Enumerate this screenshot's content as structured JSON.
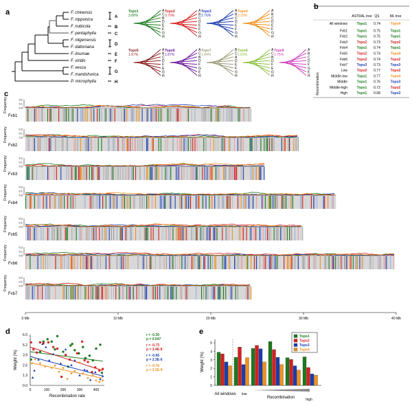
{
  "colors": {
    "Topo1": "#1d7a1d",
    "Topo2": "#d42020",
    "Topo3": "#1c3cb0",
    "Topo4": "#f0901a",
    "Topo5": "#8b1a1a",
    "Topo6": "#6a1a9a",
    "Topo7": "#9a9a78",
    "Topo8": "#8ac040",
    "Topo9": "#d040c0"
  },
  "panel_a": {
    "label": "a",
    "species": [
      "F. chinensis",
      "F. nipponica",
      "F. nubicola",
      "F. pentaphylla",
      "F. nilgerrensis",
      "F. daltoniana",
      "F. iinumae",
      "F. viridis",
      "F. vesca",
      "F. mandshurica",
      "P. microphylla"
    ],
    "groups": [
      "A",
      "B",
      "C",
      "D",
      "E",
      "F",
      "G",
      "H"
    ],
    "topologies": [
      {
        "name": "Topo1",
        "pct": "3.88%",
        "leaves": "ACBDEFGH"
      },
      {
        "name": "Topo2",
        "pct": "3.70%",
        "leaves": "ABCDEFGH"
      },
      {
        "name": "Topo3",
        "pct": "2.76%",
        "leaves": "ABCDEFGH"
      },
      {
        "name": "Topo4",
        "pct": "2.29%",
        "leaves": "ABCDEFGH"
      },
      {
        "name": "Topo5",
        "pct": "1.97%",
        "leaves": "ABCDFEGH"
      },
      {
        "name": "Topo6",
        "pct": "1.87%",
        "leaves": "ACBDFGEH"
      },
      {
        "name": "Topo7",
        "pct": "1.84%",
        "leaves": "BCADEFGH"
      },
      {
        "name": "Topo8",
        "pct": "1.83%",
        "leaves": "ACBDFEGH"
      },
      {
        "name": "Topo9",
        "pct": "1.75%",
        "leaves": "ABCDFGEH"
      }
    ]
  },
  "panel_b": {
    "label": "b",
    "headers": [
      "ASTRAL tree",
      "QS",
      "ML tree"
    ],
    "group_label": "Recombination",
    "rows": [
      {
        "name": "All windows",
        "astral": "Topo1",
        "qs": "0.74",
        "ml": "Topo4"
      },
      {
        "name": "Fvb1",
        "astral": "Topo1",
        "qs": "0.75",
        "ml": "Topo1"
      },
      {
        "name": "Fvb2",
        "astral": "Topo1",
        "qs": "0.75",
        "ml": "Topo1"
      },
      {
        "name": "Fvb3",
        "astral": "Topo2",
        "qs": "0.73",
        "ml": "Topo2"
      },
      {
        "name": "Fvb4",
        "astral": "Topo1",
        "qs": "0.74",
        "ml": "Topo1"
      },
      {
        "name": "Fvb5",
        "astral": "Topo2",
        "qs": "0.74",
        "ml": "Topo4"
      },
      {
        "name": "Fvb6",
        "astral": "Topo2",
        "qs": "0.74",
        "ml": "Topo2"
      },
      {
        "name": "Fvb7",
        "astral": "Topo3",
        "qs": "0.73",
        "ml": "Topo3"
      },
      {
        "name": "Low",
        "astral": "Topo2",
        "qs": "0.77",
        "ml": "Topo2"
      },
      {
        "name": "Middle-low",
        "astral": "Topo1",
        "qs": "0.77",
        "ml": "Topo4"
      },
      {
        "name": "Middle",
        "astral": "Topo1",
        "qs": "0.76",
        "ml": "Topo3"
      },
      {
        "name": "Middle-high",
        "astral": "Topo1",
        "qs": "0.72",
        "ml": "Topo2"
      },
      {
        "name": "High",
        "astral": "Topo1",
        "qs": "0.68",
        "ml": "Topo3"
      }
    ]
  },
  "panel_c": {
    "label": "c",
    "ylabel": "Frequency",
    "yticks": [
      "0.2",
      "0.1",
      "0.0"
    ],
    "chromosomes": [
      {
        "name": "Fvb1",
        "length_mb": 24.3
      },
      {
        "name": "Fvb2",
        "length_mb": 29.5
      },
      {
        "name": "Fvb3",
        "length_mb": 25.8
      },
      {
        "name": "Fvb4",
        "length_mb": 33.5
      },
      {
        "name": "Fvb5",
        "length_mb": 29.9
      },
      {
        "name": "Fvb6",
        "length_mb": 39.8
      },
      {
        "name": "Fvb7",
        "length_mb": 24.3
      }
    ],
    "xticks": [
      "0 Mb",
      "10 Mb",
      "20 Mb",
      "30 Mb",
      "40 Mb"
    ]
  },
  "chart_data": [
    {
      "panel": "d",
      "type": "scatter",
      "xlabel": "Recombination rate",
      "ylabel": "Weight (%)",
      "xlim": [
        0,
        450
      ],
      "ylim": [
        0,
        6.5
      ],
      "xticks": [
        "0",
        "100",
        "200",
        "300",
        "400"
      ],
      "yticks": [
        "0.0",
        "1.3",
        "2.6",
        "3.9",
        "5.2",
        "6.5"
      ],
      "series": [
        {
          "name": "Topo1",
          "marker": "circle",
          "r": "r = -0.30",
          "p": "p = 0.047",
          "fit": [
            4.3,
            3.1
          ],
          "points": [
            [
              5,
              3.3
            ],
            [
              60,
              4.3
            ],
            [
              80,
              5.6
            ],
            [
              105,
              5.9
            ],
            [
              130,
              5.6
            ],
            [
              165,
              6.3
            ],
            [
              150,
              4.6
            ],
            [
              200,
              4.3
            ],
            [
              245,
              5.1
            ],
            [
              255,
              5.3
            ],
            [
              270,
              4.5
            ],
            [
              295,
              4.1
            ],
            [
              320,
              4.9
            ],
            [
              335,
              3.5
            ],
            [
              360,
              3.8
            ],
            [
              380,
              3.2
            ],
            [
              400,
              4.7
            ],
            [
              425,
              5.2
            ],
            [
              435,
              1.6
            ],
            [
              230,
              2.4
            ]
          ]
        },
        {
          "name": "Topo2",
          "marker": "square",
          "r": "r = -0.73",
          "p": "p = 3.4E-8",
          "fit": [
            4.9,
            1.9
          ],
          "points": [
            [
              5,
              5.5
            ],
            [
              20,
              4.6
            ],
            [
              40,
              4.2
            ],
            [
              60,
              5.5
            ],
            [
              80,
              5.4
            ],
            [
              110,
              5.5
            ],
            [
              140,
              4.9
            ],
            [
              165,
              4.7
            ],
            [
              190,
              1.1
            ],
            [
              215,
              3.9
            ],
            [
              240,
              3.3
            ],
            [
              285,
              4.1
            ],
            [
              315,
              5.6
            ],
            [
              330,
              3.2
            ],
            [
              350,
              3.0
            ],
            [
              375,
              1.7
            ],
            [
              395,
              2.3
            ],
            [
              420,
              1.9
            ],
            [
              440,
              2.1
            ]
          ]
        },
        {
          "name": "Topo3",
          "marker": "triangle",
          "r": "r = -0.65",
          "p": "p = 2.3E-6",
          "fit": [
            3.7,
            1.2
          ],
          "points": [
            [
              15,
              1.0
            ],
            [
              25,
              1.9
            ],
            [
              50,
              3.3
            ],
            [
              75,
              5.3
            ],
            [
              95,
              4.9
            ],
            [
              115,
              3.2
            ],
            [
              140,
              4.0
            ],
            [
              185,
              2.8
            ],
            [
              215,
              4.6
            ],
            [
              250,
              2.6
            ],
            [
              270,
              3.2
            ],
            [
              300,
              1.3
            ],
            [
              330,
              2.0
            ],
            [
              345,
              1.9
            ],
            [
              365,
              0.7
            ],
            [
              395,
              1.7
            ],
            [
              425,
              0.8
            ],
            [
              440,
              1.2
            ]
          ]
        },
        {
          "name": "Topo4",
          "marker": "triangle-down",
          "r": "r = -0.76",
          "p": "p = 3.3E-9",
          "fit": [
            2.9,
            0.9
          ],
          "points": [
            [
              10,
              2.8
            ],
            [
              30,
              3.3
            ],
            [
              60,
              2.8
            ],
            [
              90,
              2.4
            ],
            [
              130,
              2.2
            ],
            [
              150,
              2.5
            ],
            [
              175,
              1.7
            ],
            [
              200,
              2.2
            ],
            [
              225,
              0.8
            ],
            [
              250,
              1.5
            ],
            [
              270,
              1.8
            ],
            [
              300,
              2.9
            ],
            [
              320,
              1.5
            ],
            [
              350,
              0.9
            ],
            [
              380,
              1.3
            ],
            [
              400,
              0.6
            ],
            [
              420,
              0.4
            ],
            [
              440,
              0.6
            ]
          ]
        }
      ]
    },
    {
      "panel": "e",
      "type": "bar",
      "ylabel": "Weight (%)",
      "ylim": [
        0,
        5.5
      ],
      "yticks": [
        "0",
        "1",
        "2",
        "3",
        "4",
        "5"
      ],
      "categories": [
        "All windows",
        "low",
        "",
        "",
        "",
        "high"
      ],
      "xlabel": "Recombination",
      "series": [
        {
          "name": "Topo1",
          "values": [
            3.9,
            3.3,
            4.35,
            5.15,
            3.25,
            3.35
          ]
        },
        {
          "name": "Topo2",
          "values": [
            3.7,
            4.5,
            4.7,
            4.2,
            3.05,
            2.1
          ]
        },
        {
          "name": "Topo3",
          "values": [
            2.75,
            2.45,
            4.3,
            3.3,
            2.3,
            1.35
          ]
        },
        {
          "name": "Topo4",
          "values": [
            2.3,
            3.25,
            2.75,
            2.45,
            1.8,
            1.2
          ]
        }
      ],
      "legend": "top-right"
    }
  ]
}
